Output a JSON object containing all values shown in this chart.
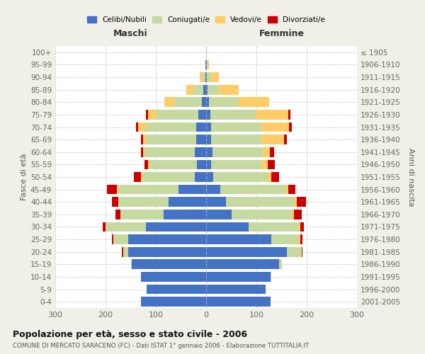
{
  "age_groups": [
    "0-4",
    "5-9",
    "10-14",
    "15-19",
    "20-24",
    "25-29",
    "30-34",
    "35-39",
    "40-44",
    "45-49",
    "50-54",
    "55-59",
    "60-64",
    "65-69",
    "70-74",
    "75-79",
    "80-84",
    "85-89",
    "90-94",
    "95-99",
    "100+"
  ],
  "birth_years": [
    "2001-2005",
    "1996-2000",
    "1991-1995",
    "1986-1990",
    "1981-1985",
    "1976-1980",
    "1971-1975",
    "1966-1970",
    "1961-1965",
    "1956-1960",
    "1951-1955",
    "1946-1950",
    "1941-1945",
    "1936-1940",
    "1931-1935",
    "1926-1930",
    "1921-1925",
    "1916-1920",
    "1911-1915",
    "1906-1910",
    "≤ 1905"
  ],
  "maschi": {
    "celibi": [
      130,
      118,
      130,
      148,
      155,
      155,
      120,
      85,
      75,
      55,
      22,
      18,
      22,
      20,
      20,
      15,
      8,
      5,
      2,
      1,
      0
    ],
    "coniugati": [
      0,
      0,
      0,
      2,
      10,
      30,
      80,
      85,
      100,
      120,
      105,
      95,
      100,
      100,
      100,
      85,
      55,
      20,
      5,
      1,
      0
    ],
    "vedovi": [
      0,
      0,
      0,
      0,
      0,
      0,
      0,
      0,
      0,
      2,
      2,
      2,
      3,
      5,
      15,
      15,
      20,
      15,
      5,
      0,
      0
    ],
    "divorziati": [
      0,
      0,
      0,
      0,
      3,
      3,
      5,
      10,
      12,
      20,
      15,
      8,
      5,
      5,
      5,
      5,
      0,
      0,
      0,
      0,
      0
    ]
  },
  "femmine": {
    "nubili": [
      128,
      118,
      128,
      145,
      160,
      130,
      85,
      50,
      40,
      28,
      14,
      10,
      12,
      10,
      10,
      8,
      5,
      3,
      2,
      1,
      0
    ],
    "coniugate": [
      0,
      0,
      2,
      5,
      30,
      55,
      100,
      120,
      135,
      130,
      108,
      100,
      100,
      100,
      100,
      90,
      60,
      22,
      8,
      2,
      0
    ],
    "vedove": [
      0,
      0,
      0,
      0,
      0,
      2,
      2,
      5,
      5,
      5,
      8,
      12,
      15,
      45,
      55,
      65,
      60,
      40,
      15,
      2,
      0
    ],
    "divorziate": [
      0,
      0,
      0,
      0,
      2,
      5,
      8,
      15,
      18,
      15,
      15,
      15,
      8,
      5,
      5,
      5,
      0,
      0,
      0,
      0,
      0
    ]
  },
  "colors": {
    "celibi": "#4472C4",
    "coniugati": "#C5D9A0",
    "vedovi": "#FFCC66",
    "divorziati": "#CC0000"
  },
  "xlim": 300,
  "title": "Popolazione per età, sesso e stato civile - 2006",
  "subtitle": "COMUNE DI MERCATO SARACENO (FC) - Dati ISTAT 1° gennaio 2006 - Elaborazione TUTTITALIA.IT",
  "ylabel_left": "Fasce di età",
  "ylabel_right": "Anni di nascita",
  "xlabel_maschi": "Maschi",
  "xlabel_femmine": "Femmine",
  "bg_color": "#f0f0e8",
  "plot_bg": "#ffffff"
}
